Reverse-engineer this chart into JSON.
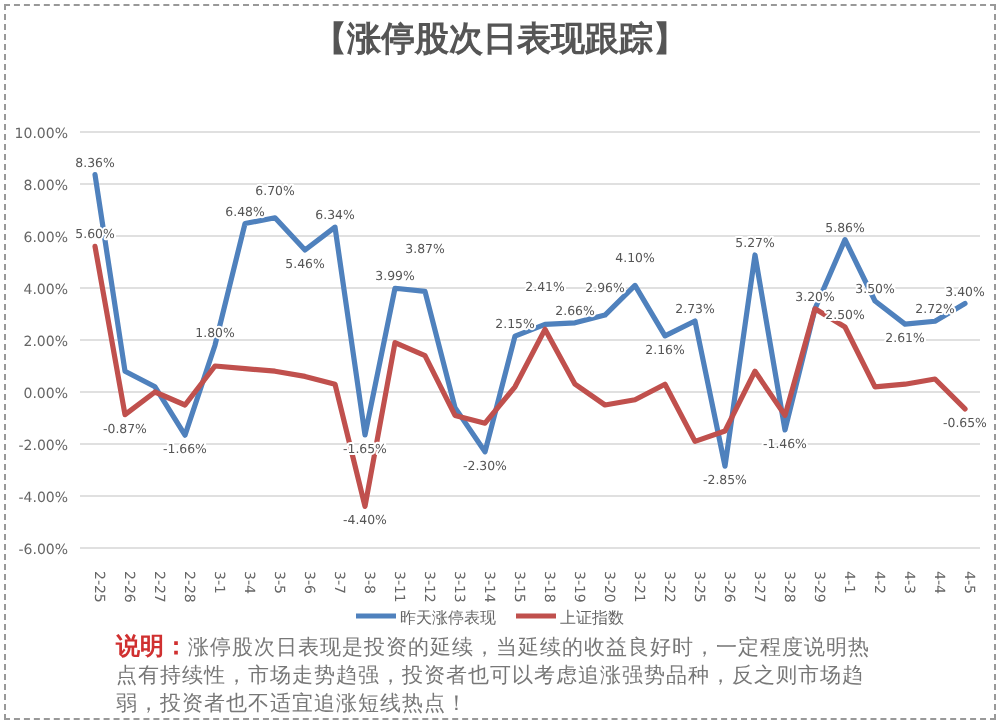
{
  "chart_data": {
    "type": "line",
    "title": "【涨停股次日表现跟踪】",
    "categories": [
      "2-25",
      "2-26",
      "2-27",
      "2-28",
      "3-1",
      "3-4",
      "3-5",
      "3-6",
      "3-7",
      "3-8",
      "3-11",
      "3-12",
      "3-13",
      "3-14",
      "3-15",
      "3-18",
      "3-19",
      "3-20",
      "3-21",
      "3-22",
      "3-25",
      "3-26",
      "3-27",
      "3-28",
      "3-29",
      "4-1",
      "4-2",
      "4-3",
      "4-4",
      "4-5"
    ],
    "series": [
      {
        "name": "昨天涨停表现",
        "color": "#4f81bd",
        "values": [
          8.36,
          0.8,
          0.2,
          -1.66,
          1.8,
          6.48,
          6.7,
          5.46,
          6.34,
          -1.65,
          3.99,
          3.87,
          -0.6,
          -2.3,
          2.15,
          2.6,
          2.66,
          2.96,
          4.1,
          2.16,
          2.73,
          -2.85,
          5.27,
          -1.46,
          3.2,
          5.86,
          3.5,
          2.61,
          2.72,
          3.4
        ],
        "value_labels": [
          "8.36%",
          null,
          null,
          "-1.66%",
          "1.80%",
          "6.48%",
          "6.70%",
          "5.46%",
          "6.34%",
          "-1.65%",
          "3.99%",
          "3.87%",
          null,
          "-2.30%",
          "2.15%",
          null,
          "2.66%",
          "2.96%",
          "4.10%",
          "2.16%",
          "2.73%",
          "-2.85%",
          "5.27%",
          "-1.46%",
          null,
          "5.86%",
          "3.50%",
          "2.61%",
          "2.72%",
          "3.40%"
        ]
      },
      {
        "name": "上证指数",
        "color": "#c0504d",
        "values": [
          5.6,
          -0.87,
          0.0,
          -0.5,
          1.0,
          0.9,
          0.8,
          0.6,
          0.3,
          -4.4,
          1.9,
          1.4,
          -0.9,
          -1.2,
          0.2,
          2.41,
          0.3,
          -0.5,
          -0.3,
          0.3,
          -1.9,
          -1.5,
          0.8,
          -0.9,
          3.2,
          2.5,
          0.2,
          0.3,
          0.5,
          -0.65
        ],
        "value_labels": [
          "5.60%",
          "-0.87%",
          null,
          null,
          null,
          null,
          null,
          null,
          null,
          "-4.40%",
          null,
          null,
          null,
          null,
          null,
          "2.41%",
          null,
          null,
          null,
          null,
          null,
          null,
          null,
          null,
          "3.20%",
          "2.50%",
          null,
          null,
          null,
          "-0.65%"
        ]
      }
    ],
    "ylim": [
      -6,
      10
    ],
    "yticks": [
      {
        "value": -6,
        "label": "-6.00%"
      },
      {
        "value": -4,
        "label": "-4.00%"
      },
      {
        "value": -2,
        "label": "-2.00%"
      },
      {
        "value": 0,
        "label": "0.00%"
      },
      {
        "value": 2,
        "label": "2.00%"
      },
      {
        "value": 4,
        "label": "4.00%"
      },
      {
        "value": 6,
        "label": "6.00%"
      },
      {
        "value": 8,
        "label": "8.00%"
      },
      {
        "value": 10,
        "label": "10.00%"
      }
    ],
    "grid": "y",
    "legend": "bottom",
    "marker": "none",
    "line_style": "solid",
    "annotations": [
      "说明：",
      "涨停股次日表现是投资的延续，当延续的收益良好时，一定程度说明热点有持续性，市场走势趋强，投资者也可以考虑追涨强势品种，反之则市场趋弱，投资者也不适宜追涨短线热点！"
    ]
  }
}
